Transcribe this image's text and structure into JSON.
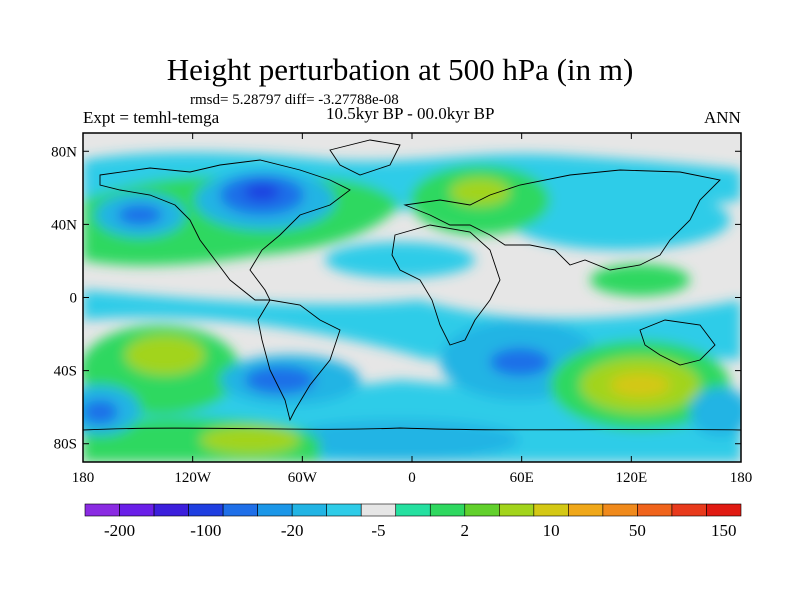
{
  "title": "Height perturbation at 500 hPa (in m)",
  "stats": "rmsd= 5.28797 diff= -3.27788e-08",
  "experiment": "Expt = temhl-temga",
  "period": "10.5kyr BP - 00.0kyr BP",
  "season": "ANN",
  "lat_labels": [
    "80N",
    "40N",
    "0",
    "40S",
    "80S"
  ],
  "lat_values": [
    80,
    40,
    0,
    -40,
    -80
  ],
  "lon_labels": [
    "180",
    "120W",
    "60W",
    "0",
    "60E",
    "120E",
    "180"
  ],
  "lon_values": [
    -180,
    -120,
    -60,
    0,
    60,
    120,
    180
  ],
  "colorbar": {
    "colors": [
      "#8a2be2",
      "#6a1fe8",
      "#3c1fdc",
      "#1f3fe0",
      "#1f6fe8",
      "#1c97e8",
      "#22b4e4",
      "#2fcce8",
      "#e6e6e6",
      "#25e0a0",
      "#2fd860",
      "#62d02c",
      "#a2d41c",
      "#d4c814",
      "#f0a81a",
      "#f08a1c",
      "#f0641c",
      "#e83a1c",
      "#e01a12"
    ],
    "labels": [
      "-200",
      "-100",
      "-20",
      "-5",
      "2",
      "10",
      "50",
      "150"
    ]
  }
}
